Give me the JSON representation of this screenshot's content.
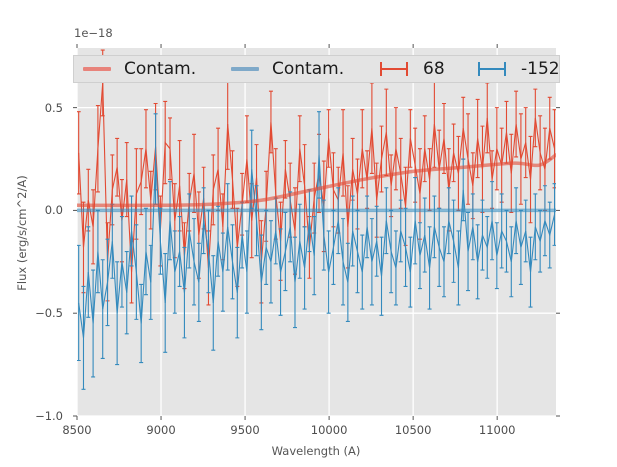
{
  "figure": {
    "offset_text": "1e−18",
    "xlabel": "Wavelength (A)",
    "ylabel": "Flux (erg/s/cm^2/A)"
  },
  "legend": {
    "position": "upper center",
    "entries": [
      {
        "label": "Contam.",
        "marker": "line",
        "color": "#E24A33"
      },
      {
        "label": "Contam.",
        "marker": "line",
        "color": "#348ABD"
      },
      {
        "label": "68",
        "marker": "errorbar",
        "color": "#E24A33"
      },
      {
        "label": "-152",
        "marker": "errorbar",
        "color": "#348ABD"
      }
    ]
  },
  "chart_data": {
    "type": "line",
    "title": "",
    "xlabel": "Wavelength (A)",
    "ylabel": "Flux (erg/s/cm^2/A)",
    "y_offset_label": "1e−18",
    "xlim": [
      8500,
      11350
    ],
    "ylim": [
      -1.0,
      0.79
    ],
    "grid": true,
    "legend_position": "upper center",
    "axes_style": {
      "bg": "#E5E5E5",
      "grid_color": "#FFFFFF",
      "tick_color": "#555555",
      "label_color": "#555555"
    },
    "x_ticks": [
      {
        "v": 8500,
        "label": "8500"
      },
      {
        "v": 9000,
        "label": "9000"
      },
      {
        "v": 9500,
        "label": "9500"
      },
      {
        "v": 10000,
        "label": "10000"
      },
      {
        "v": 10500,
        "label": "10500"
      },
      {
        "v": 11000,
        "label": "11000"
      }
    ],
    "y_ticks": [
      {
        "v": 0.5,
        "label": "0.5"
      },
      {
        "v": 0.0,
        "label": "0.0"
      },
      {
        "v": -0.5,
        "label": "−0.5"
      },
      {
        "v": -1.0,
        "label": "−1.0"
      }
    ],
    "series": [
      {
        "name": "68",
        "role": "errorbar",
        "color": "#E24A33",
        "x_start": 8510,
        "x_step": 28.6,
        "y": [
          0.28,
          -0.18,
          0.05,
          -0.08,
          0.3,
          0.62,
          -0.25,
          0.1,
          0.21,
          -0.05,
          0.15,
          -0.3,
          0.08,
          0.14,
          0.3,
          0.05,
          0.31,
          -0.1,
          0.33,
          0.3,
          -0.05,
          0.12,
          -0.22,
          0.04,
          0.18,
          -0.12,
          0.06,
          -0.28,
          0.1,
          0.2,
          -0.08,
          0.42,
          0.15,
          -0.18,
          0.03,
          0.25,
          -0.05,
          0.16,
          -0.25,
          0.02,
          0.43,
          0.08,
          -0.15,
          0.2,
          0.05,
          -0.1,
          0.3,
          0.12,
          -0.18,
          0.06,
          0.18,
          0.02,
          0.35,
          0.1,
          0.05,
          0.28,
          -0.08,
          0.2,
          0.08,
          0.3,
          0.15,
          0.4,
          0.05,
          0.25,
          0.38,
          0.12,
          0.3,
          0.18,
          0.02,
          0.35,
          0.22,
          0.08,
          0.3,
          0.15,
          0.42,
          0.2,
          0.35,
          0.1,
          0.28,
          0.18,
          0.4,
          0.25,
          0.12,
          0.35,
          0.2,
          0.45,
          0.15,
          0.3,
          0.22,
          0.38,
          0.18,
          0.42,
          0.25,
          0.33,
          0.15,
          0.45,
          0.28,
          0.2,
          0.4,
          0.3
        ],
        "yerr": [
          0.2,
          0.22,
          0.15,
          0.18,
          0.21,
          0.16,
          0.19,
          0.17,
          0.14,
          0.2,
          0.18,
          0.15,
          0.22,
          0.16,
          0.19,
          0.14,
          0.21,
          0.17,
          0.2,
          0.15,
          0.18,
          0.22,
          0.16,
          0.14,
          0.19,
          0.21,
          0.15,
          0.18,
          0.17,
          0.2,
          0.16,
          0.22,
          0.14,
          0.19,
          0.15,
          0.21,
          0.18,
          0.16,
          0.2,
          0.17,
          0.15,
          0.22,
          0.19,
          0.14,
          0.18,
          0.21,
          0.16,
          0.2,
          0.15,
          0.17,
          0.19,
          0.22,
          0.14,
          0.18,
          0.16,
          0.21,
          0.2,
          0.15,
          0.17,
          0.19,
          0.14,
          0.22,
          0.18,
          0.16,
          0.21,
          0.15,
          0.2,
          0.17,
          0.19,
          0.14,
          0.18,
          0.22,
          0.16,
          0.15,
          0.21,
          0.19,
          0.17,
          0.2,
          0.14,
          0.18,
          0.15,
          0.22,
          0.16,
          0.19,
          0.21,
          0.17,
          0.14,
          0.2,
          0.18,
          0.15,
          0.19,
          0.16,
          0.22,
          0.17,
          0.21,
          0.14,
          0.18,
          0.2,
          0.15,
          0.19
        ]
      },
      {
        "name": "-152",
        "role": "errorbar",
        "color": "#348ABD",
        "x_start": 8510,
        "x_step": 28.6,
        "y": [
          -0.45,
          -0.62,
          -0.3,
          -0.55,
          -0.2,
          -0.48,
          -0.35,
          -0.15,
          -0.5,
          -0.25,
          -0.4,
          -0.1,
          -0.3,
          -0.55,
          -0.2,
          -0.35,
          0.25,
          -0.15,
          -0.45,
          -0.05,
          -0.3,
          -0.2,
          -0.4,
          -0.1,
          -0.25,
          -0.35,
          -0.05,
          -0.2,
          -0.45,
          -0.15,
          -0.3,
          -0.08,
          -0.25,
          -0.4,
          -0.12,
          -0.3,
          0.2,
          -0.05,
          -0.35,
          -0.18,
          -0.25,
          -0.1,
          -0.3,
          -0.2,
          -0.08,
          -0.35,
          -0.15,
          -0.28,
          -0.05,
          -0.22,
          0.27,
          -0.12,
          -0.3,
          -0.18,
          -0.05,
          -0.25,
          -0.35,
          -0.1,
          -0.2,
          -0.3,
          -0.08,
          -0.25,
          -0.15,
          -0.32,
          -0.05,
          -0.2,
          -0.28,
          -0.1,
          -0.18,
          -0.3,
          -0.05,
          -0.22,
          -0.12,
          -0.28,
          -0.08,
          -0.18,
          -0.25,
          -0.05,
          -0.15,
          -0.28,
          0.1,
          -0.2,
          -0.08,
          -0.25,
          -0.12,
          -0.18,
          -0.05,
          -0.22,
          -0.1,
          -0.15,
          -0.25,
          -0.05,
          -0.18,
          -0.1,
          -0.3,
          -0.08,
          -0.15,
          -0.05,
          -0.12,
          -0.02
        ],
        "yerr": [
          0.28,
          0.25,
          0.22,
          0.26,
          0.2,
          0.24,
          0.21,
          0.18,
          0.25,
          0.22,
          0.2,
          0.17,
          0.23,
          0.19,
          0.21,
          0.18,
          0.22,
          0.16,
          0.24,
          0.19,
          0.2,
          0.17,
          0.22,
          0.18,
          0.21,
          0.19,
          0.16,
          0.2,
          0.23,
          0.17,
          0.19,
          0.21,
          0.18,
          0.22,
          0.16,
          0.2,
          0.19,
          0.17,
          0.23,
          0.18,
          0.2,
          0.16,
          0.21,
          0.19,
          0.17,
          0.22,
          0.18,
          0.2,
          0.15,
          0.19,
          0.21,
          0.17,
          0.2,
          0.18,
          0.16,
          0.21,
          0.19,
          0.17,
          0.2,
          0.18,
          0.15,
          0.21,
          0.17,
          0.19,
          0.16,
          0.2,
          0.18,
          0.15,
          0.19,
          0.17,
          0.21,
          0.16,
          0.18,
          0.2,
          0.15,
          0.19,
          0.17,
          0.16,
          0.2,
          0.18,
          0.15,
          0.19,
          0.16,
          0.18,
          0.17,
          0.15,
          0.19,
          0.16,
          0.18,
          0.15,
          0.17,
          0.16,
          0.18,
          0.15,
          0.17,
          0.16,
          0.15,
          0.17,
          0.16,
          0.15
        ]
      },
      {
        "name": "Contam.",
        "role": "model",
        "color": "#E24A33",
        "alpha": 0.6,
        "lw": 3.5,
        "x": [
          8500,
          9000,
          9300,
          9600,
          9900,
          10200,
          10500,
          10800,
          11100,
          11250,
          11350
        ],
        "y": [
          0.025,
          0.025,
          0.03,
          0.05,
          0.1,
          0.15,
          0.19,
          0.21,
          0.23,
          0.22,
          0.27
        ]
      },
      {
        "name": "Contam.",
        "role": "model",
        "color": "#348ABD",
        "alpha": 0.6,
        "lw": 3.5,
        "x": [
          8500,
          11350
        ],
        "y": [
          0.0,
          0.0
        ]
      }
    ]
  }
}
